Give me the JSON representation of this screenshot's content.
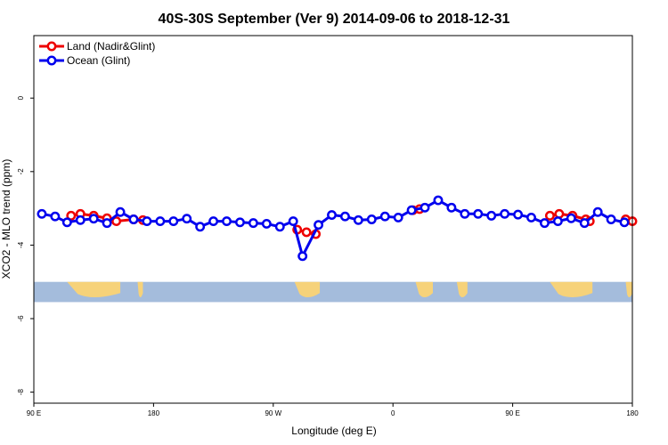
{
  "chart_data": {
    "type": "line",
    "title": "40S-30S September (Ver 9)   2014-09-06 to 2018-12-31",
    "xlabel": "Longitude (deg E)",
    "ylabel": "XCO2 - MLO trend (ppm)",
    "xlim": [
      90,
      540
    ],
    "ylim": [
      -8.3,
      1.7
    ],
    "x_ticks": [
      {
        "value": 90,
        "label": "90 E"
      },
      {
        "value": 180,
        "label": "180"
      },
      {
        "value": 270,
        "label": "90 W"
      },
      {
        "value": 360,
        "label": "0"
      },
      {
        "value": 450,
        "label": "90 E"
      },
      {
        "value": 540,
        "label": "180"
      }
    ],
    "y_ticks": [
      {
        "value": 0,
        "label": "0"
      },
      {
        "value": -2,
        "label": "-2"
      },
      {
        "value": -4,
        "label": "-4"
      },
      {
        "value": -6,
        "label": "-6"
      },
      {
        "value": -8,
        "label": "-8"
      }
    ],
    "map_band": {
      "y_top": -5.0,
      "y_bottom": -5.55,
      "ocean_color": "#a4bcdc",
      "land_color": "#f6d27a"
    },
    "land_regions": [
      [
        115,
        155
      ],
      [
        168,
        172
      ],
      [
        286,
        305
      ],
      [
        377,
        390
      ],
      [
        408,
        416
      ],
      [
        478,
        510
      ],
      [
        535,
        540
      ]
    ],
    "legend": {
      "position": "top-left",
      "entries": [
        {
          "label": "Land (Nadir&Glint)",
          "color": "#ee0000"
        },
        {
          "label": "Ocean (Glint)",
          "color": "#0000ee"
        }
      ]
    },
    "series": [
      {
        "name": "Land (Nadir&Glint)",
        "color": "#ee0000",
        "segments": [
          {
            "x": [
              118,
              125,
              135,
              145,
              152,
              165,
              172
            ],
            "y": [
              -3.2,
              -3.15,
              -3.2,
              -3.27,
              -3.35,
              -3.3,
              -3.32
            ]
          },
          {
            "x": [
              288,
              295,
              302
            ],
            "y": [
              -3.58,
              -3.65,
              -3.7
            ]
          },
          {
            "x": [
              375,
              380
            ],
            "y": [
              -3.05,
              -3.02
            ]
          },
          {
            "x": [
              478,
              485,
              495,
              505,
              508
            ],
            "y": [
              -3.2,
              -3.15,
              -3.2,
              -3.3,
              -3.35
            ]
          },
          {
            "x": [
              535,
              540
            ],
            "y": [
              -3.3,
              -3.35
            ]
          }
        ]
      },
      {
        "name": "Ocean (Glint)",
        "color": "#0000ee",
        "x": [
          96,
          106,
          115,
          125,
          135,
          145,
          155,
          165,
          175,
          185,
          195,
          205,
          215,
          225,
          235,
          245,
          255,
          265,
          275,
          285,
          292,
          304,
          314,
          324,
          334,
          344,
          354,
          364,
          374,
          384,
          394,
          404,
          414,
          424,
          434,
          444,
          454,
          464,
          474,
          484,
          494,
          504,
          514,
          524,
          534
        ],
        "y": [
          -3.15,
          -3.22,
          -3.38,
          -3.32,
          -3.28,
          -3.4,
          -3.1,
          -3.3,
          -3.35,
          -3.35,
          -3.35,
          -3.28,
          -3.5,
          -3.35,
          -3.35,
          -3.38,
          -3.4,
          -3.42,
          -3.5,
          -3.35,
          -4.3,
          -3.45,
          -3.18,
          -3.22,
          -3.32,
          -3.3,
          -3.22,
          -3.25,
          -3.05,
          -2.98,
          -2.78,
          -2.98,
          -3.15,
          -3.15,
          -3.2,
          -3.15,
          -3.17,
          -3.25,
          -3.4,
          -3.35,
          -3.27,
          -3.4,
          -3.1,
          -3.3,
          -3.38
        ]
      }
    ]
  }
}
